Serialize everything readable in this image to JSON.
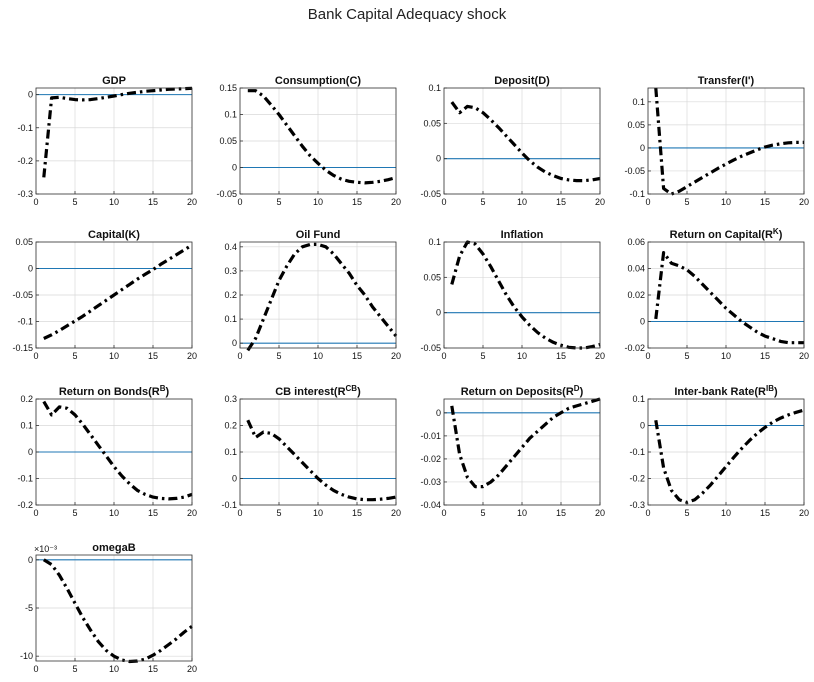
{
  "figure": {
    "title": "Bank Capital Adequacy shock"
  },
  "colors": {
    "response": "#000000",
    "zero_line": "#1f77b4",
    "grid": "#d9d9d9",
    "axes": "#333333"
  },
  "chart_data": [
    {
      "type": "line",
      "title": "GDP",
      "xlim": [
        0,
        20
      ],
      "ylim": [
        -0.3,
        0.02
      ],
      "xticks": [
        0,
        5,
        10,
        15,
        20
      ],
      "yticks": [
        -0.3,
        -0.2,
        -0.1,
        0
      ],
      "ytick_labels": [
        "-0.3",
        "-0.2",
        "-0.1",
        "0"
      ],
      "grid": true,
      "zero_line": true,
      "series": [
        {
          "x": [
            1,
            2,
            3,
            4,
            5,
            6,
            7,
            8,
            9,
            10,
            11,
            12,
            13,
            14,
            15,
            16,
            17,
            18,
            19,
            20
          ],
          "y": [
            -0.25,
            -0.01,
            -0.008,
            -0.012,
            -0.015,
            -0.016,
            -0.015,
            -0.012,
            -0.008,
            -0.004,
            0.0,
            0.004,
            0.007,
            0.01,
            0.012,
            0.014,
            0.016,
            0.017,
            0.018,
            0.019
          ]
        }
      ]
    },
    {
      "type": "line",
      "title": "Consumption(C)",
      "xlim": [
        0,
        20
      ],
      "ylim": [
        -0.05,
        0.15
      ],
      "xticks": [
        0,
        5,
        10,
        15,
        20
      ],
      "yticks": [
        -0.05,
        0,
        0.05,
        0.1,
        0.15
      ],
      "ytick_labels": [
        "-0.05",
        "0",
        "0.05",
        "0.1",
        "0.15"
      ],
      "grid": true,
      "zero_line": true,
      "series": [
        {
          "x": [
            1,
            2,
            3,
            4,
            5,
            6,
            7,
            8,
            9,
            10,
            11,
            12,
            13,
            14,
            15,
            16,
            17,
            18,
            19,
            20
          ],
          "y": [
            0.145,
            0.145,
            0.135,
            0.118,
            0.1,
            0.08,
            0.06,
            0.04,
            0.022,
            0.008,
            -0.005,
            -0.015,
            -0.022,
            -0.026,
            -0.028,
            -0.029,
            -0.028,
            -0.026,
            -0.023,
            -0.019
          ]
        }
      ]
    },
    {
      "type": "line",
      "title": "Deposit(D)",
      "xlim": [
        0,
        20
      ],
      "ylim": [
        -0.05,
        0.1
      ],
      "xticks": [
        0,
        5,
        10,
        15,
        20
      ],
      "yticks": [
        -0.05,
        0,
        0.05,
        0.1
      ],
      "ytick_labels": [
        "-0.05",
        "0",
        "0.05",
        "0.1"
      ],
      "grid": true,
      "zero_line": true,
      "series": [
        {
          "x": [
            1,
            2,
            3,
            4,
            5,
            6,
            7,
            8,
            9,
            10,
            11,
            12,
            13,
            14,
            15,
            16,
            17,
            18,
            19,
            20
          ],
          "y": [
            0.08,
            0.065,
            0.074,
            0.072,
            0.065,
            0.055,
            0.044,
            0.032,
            0.02,
            0.008,
            -0.003,
            -0.012,
            -0.019,
            -0.024,
            -0.028,
            -0.03,
            -0.031,
            -0.031,
            -0.03,
            -0.028
          ]
        }
      ]
    },
    {
      "type": "line",
      "title": "Transfer(I')",
      "xlim": [
        0,
        20
      ],
      "ylim": [
        -0.1,
        0.13
      ],
      "xticks": [
        0,
        5,
        10,
        15,
        20
      ],
      "yticks": [
        -0.1,
        -0.05,
        0,
        0.05,
        0.1
      ],
      "ytick_labels": [
        "-0.1",
        "-0.05",
        "0",
        "0.05",
        "0.1"
      ],
      "grid": true,
      "zero_line": true,
      "series": [
        {
          "x": [
            1,
            2,
            3,
            4,
            5,
            6,
            7,
            8,
            9,
            10,
            11,
            12,
            13,
            14,
            15,
            16,
            17,
            18,
            19,
            20
          ],
          "y": [
            0.13,
            -0.088,
            -0.1,
            -0.094,
            -0.084,
            -0.074,
            -0.064,
            -0.054,
            -0.044,
            -0.035,
            -0.026,
            -0.018,
            -0.011,
            -0.004,
            0.002,
            0.006,
            0.009,
            0.011,
            0.012,
            0.012
          ]
        }
      ]
    },
    {
      "type": "line",
      "title": "Capital(K)",
      "xlim": [
        0,
        20
      ],
      "ylim": [
        -0.15,
        0.05
      ],
      "xticks": [
        0,
        5,
        10,
        15,
        20
      ],
      "yticks": [
        -0.15,
        -0.1,
        -0.05,
        0,
        0.05
      ],
      "ytick_labels": [
        "-0.15",
        "-0.1",
        "-0.05",
        "0",
        "0.05"
      ],
      "grid": true,
      "zero_line": true,
      "series": [
        {
          "x": [
            1,
            2,
            3,
            4,
            5,
            6,
            7,
            8,
            9,
            10,
            11,
            12,
            13,
            14,
            15,
            16,
            17,
            18,
            19,
            20
          ],
          "y": [
            -0.132,
            -0.125,
            -0.117,
            -0.108,
            -0.099,
            -0.09,
            -0.08,
            -0.07,
            -0.06,
            -0.05,
            -0.04,
            -0.03,
            -0.02,
            -0.011,
            -0.002,
            0.008,
            0.017,
            0.026,
            0.035,
            0.044
          ]
        }
      ]
    },
    {
      "type": "line",
      "title": "Oil Fund",
      "xlim": [
        0,
        20
      ],
      "ylim": [
        -0.02,
        0.42
      ],
      "xticks": [
        0,
        5,
        10,
        15,
        20
      ],
      "yticks": [
        0,
        0.1,
        0.2,
        0.3,
        0.4
      ],
      "ytick_labels": [
        "0",
        "0.1",
        "0.2",
        "0.3",
        "0.4"
      ],
      "grid": true,
      "zero_line": true,
      "series": [
        {
          "x": [
            1,
            2,
            3,
            4,
            5,
            6,
            7,
            8,
            9,
            10,
            11,
            12,
            13,
            14,
            15,
            16,
            17,
            18,
            19,
            20
          ],
          "y": [
            -0.03,
            0.02,
            0.1,
            0.18,
            0.26,
            0.32,
            0.37,
            0.4,
            0.41,
            0.41,
            0.4,
            0.37,
            0.33,
            0.29,
            0.24,
            0.2,
            0.15,
            0.11,
            0.07,
            0.03
          ]
        }
      ]
    },
    {
      "type": "line",
      "title": "Inflation",
      "xlim": [
        0,
        20
      ],
      "ylim": [
        -0.05,
        0.1
      ],
      "xticks": [
        0,
        5,
        10,
        15,
        20
      ],
      "yticks": [
        -0.05,
        0,
        0.05,
        0.1
      ],
      "ytick_labels": [
        "-0.05",
        "0",
        "0.05",
        "0.1"
      ],
      "grid": true,
      "zero_line": true,
      "series": [
        {
          "x": [
            1,
            2,
            3,
            4,
            5,
            6,
            7,
            8,
            9,
            10,
            11,
            12,
            13,
            14,
            15,
            16,
            17,
            18,
            19,
            20
          ],
          "y": [
            0.04,
            0.08,
            0.1,
            0.097,
            0.083,
            0.065,
            0.045,
            0.025,
            0.008,
            -0.006,
            -0.018,
            -0.028,
            -0.036,
            -0.042,
            -0.046,
            -0.049,
            -0.05,
            -0.05,
            -0.048,
            -0.045
          ]
        }
      ]
    },
    {
      "type": "line",
      "title": "Return on Capital(R^K)",
      "title_parts": {
        "base": "Return on Capital(R",
        "sup": "K",
        "tail": ")"
      },
      "xlim": [
        0,
        20
      ],
      "ylim": [
        -0.02,
        0.06
      ],
      "xticks": [
        0,
        5,
        10,
        15,
        20
      ],
      "yticks": [
        -0.02,
        0,
        0.02,
        0.04,
        0.06
      ],
      "ytick_labels": [
        "-0.02",
        "0",
        "0.02",
        "0.04",
        "0.06"
      ],
      "grid": true,
      "zero_line": true,
      "series": [
        {
          "x": [
            1,
            2,
            3,
            4,
            5,
            6,
            7,
            8,
            9,
            10,
            11,
            12,
            13,
            14,
            15,
            16,
            17,
            18,
            19,
            20
          ],
          "y": [
            0.002,
            0.052,
            0.044,
            0.042,
            0.039,
            0.034,
            0.028,
            0.022,
            0.016,
            0.01,
            0.005,
            0.0,
            -0.004,
            -0.008,
            -0.011,
            -0.013,
            -0.015,
            -0.016,
            -0.016,
            -0.016
          ]
        }
      ]
    },
    {
      "type": "line",
      "title": "Return on Bonds(R^B)",
      "title_parts": {
        "base": "Return on Bonds(R",
        "sup": "B",
        "tail": ")"
      },
      "xlim": [
        0,
        20
      ],
      "ylim": [
        -0.2,
        0.2
      ],
      "xticks": [
        0,
        5,
        10,
        15,
        20
      ],
      "yticks": [
        -0.2,
        -0.1,
        0,
        0.1,
        0.2
      ],
      "ytick_labels": [
        "-0.2",
        "-0.1",
        "0",
        "0.1",
        "0.2"
      ],
      "grid": true,
      "zero_line": true,
      "series": [
        {
          "x": [
            1,
            2,
            3,
            4,
            5,
            6,
            7,
            8,
            9,
            10,
            11,
            12,
            13,
            14,
            15,
            16,
            17,
            18,
            19,
            20
          ],
          "y": [
            0.19,
            0.14,
            0.17,
            0.165,
            0.14,
            0.105,
            0.065,
            0.025,
            -0.015,
            -0.055,
            -0.09,
            -0.12,
            -0.145,
            -0.16,
            -0.17,
            -0.175,
            -0.177,
            -0.175,
            -0.17,
            -0.16
          ]
        }
      ]
    },
    {
      "type": "line",
      "title": "CB interest(R^CB)",
      "title_parts": {
        "base": "CB interest(R",
        "sup": "CB",
        "tail": ")"
      },
      "xlim": [
        0,
        20
      ],
      "ylim": [
        -0.1,
        0.3
      ],
      "xticks": [
        0,
        5,
        10,
        15,
        20
      ],
      "yticks": [
        -0.1,
        0,
        0.1,
        0.2,
        0.3
      ],
      "ytick_labels": [
        "-0.1",
        "0",
        "0.1",
        "0.2",
        "0.3"
      ],
      "grid": true,
      "zero_line": true,
      "series": [
        {
          "x": [
            1,
            2,
            3,
            4,
            5,
            6,
            7,
            8,
            9,
            10,
            11,
            12,
            13,
            14,
            15,
            16,
            17,
            18,
            19,
            20
          ],
          "y": [
            0.22,
            0.155,
            0.175,
            0.17,
            0.15,
            0.12,
            0.09,
            0.06,
            0.03,
            0.0,
            -0.025,
            -0.045,
            -0.06,
            -0.07,
            -0.077,
            -0.08,
            -0.08,
            -0.078,
            -0.075,
            -0.07
          ]
        }
      ]
    },
    {
      "type": "line",
      "title": "Return on Deposits(R^D)",
      "title_parts": {
        "base": "Return on Deposits(R",
        "sup": "D",
        "tail": ")"
      },
      "xlim": [
        0,
        20
      ],
      "ylim": [
        -0.04,
        0.006
      ],
      "xticks": [
        0,
        5,
        10,
        15,
        20
      ],
      "yticks": [
        -0.04,
        -0.03,
        -0.02,
        -0.01,
        0
      ],
      "ytick_labels": [
        "-0.04",
        "-0.03",
        "-0.02",
        "-0.01",
        "0"
      ],
      "grid": true,
      "zero_line": true,
      "series": [
        {
          "x": [
            1,
            2,
            3,
            4,
            5,
            6,
            7,
            8,
            9,
            10,
            11,
            12,
            13,
            14,
            15,
            16,
            17,
            18,
            19,
            20
          ],
          "y": [
            0.003,
            -0.018,
            -0.028,
            -0.032,
            -0.032,
            -0.03,
            -0.027,
            -0.023,
            -0.019,
            -0.015,
            -0.011,
            -0.008,
            -0.005,
            -0.002,
            0.0,
            0.002,
            0.003,
            0.004,
            0.005,
            0.006
          ]
        }
      ]
    },
    {
      "type": "line",
      "title": "Inter-bank Rate(R^IB)",
      "title_parts": {
        "base": "Inter-bank Rate(R",
        "sup": "IB",
        "tail": ")"
      },
      "xlim": [
        0,
        20
      ],
      "ylim": [
        -0.3,
        0.1
      ],
      "xticks": [
        0,
        5,
        10,
        15,
        20
      ],
      "yticks": [
        -0.3,
        -0.2,
        -0.1,
        0,
        0.1
      ],
      "ytick_labels": [
        "-0.3",
        "-0.2",
        "-0.1",
        "0",
        "0.1"
      ],
      "grid": true,
      "zero_line": true,
      "series": [
        {
          "x": [
            1,
            2,
            3,
            4,
            5,
            6,
            7,
            8,
            9,
            10,
            11,
            12,
            13,
            14,
            15,
            16,
            17,
            18,
            19,
            20
          ],
          "y": [
            0.02,
            -0.16,
            -0.245,
            -0.28,
            -0.29,
            -0.28,
            -0.255,
            -0.225,
            -0.19,
            -0.155,
            -0.12,
            -0.087,
            -0.057,
            -0.03,
            -0.007,
            0.013,
            0.028,
            0.04,
            0.05,
            0.058
          ]
        }
      ]
    },
    {
      "type": "line",
      "title": "omegaB",
      "xlim": [
        0,
        20
      ],
      "ylim": [
        -10.5,
        0.5
      ],
      "xticks": [
        0,
        5,
        10,
        15,
        20
      ],
      "yticks": [
        -10,
        -5,
        0
      ],
      "ytick_labels": [
        "-10",
        "-5",
        "0"
      ],
      "y_multiplier": "×10⁻³",
      "grid": true,
      "zero_line": true,
      "series": [
        {
          "x": [
            1,
            2,
            3,
            4,
            5,
            6,
            7,
            8,
            9,
            10,
            11,
            12,
            13,
            14,
            15,
            16,
            17,
            18,
            19,
            20
          ],
          "y": [
            0,
            -0.5,
            -1.6,
            -3.0,
            -4.5,
            -6.0,
            -7.3,
            -8.5,
            -9.4,
            -10.0,
            -10.4,
            -10.55,
            -10.5,
            -10.3,
            -9.9,
            -9.4,
            -8.8,
            -8.2,
            -7.5,
            -6.9
          ]
        }
      ]
    }
  ]
}
